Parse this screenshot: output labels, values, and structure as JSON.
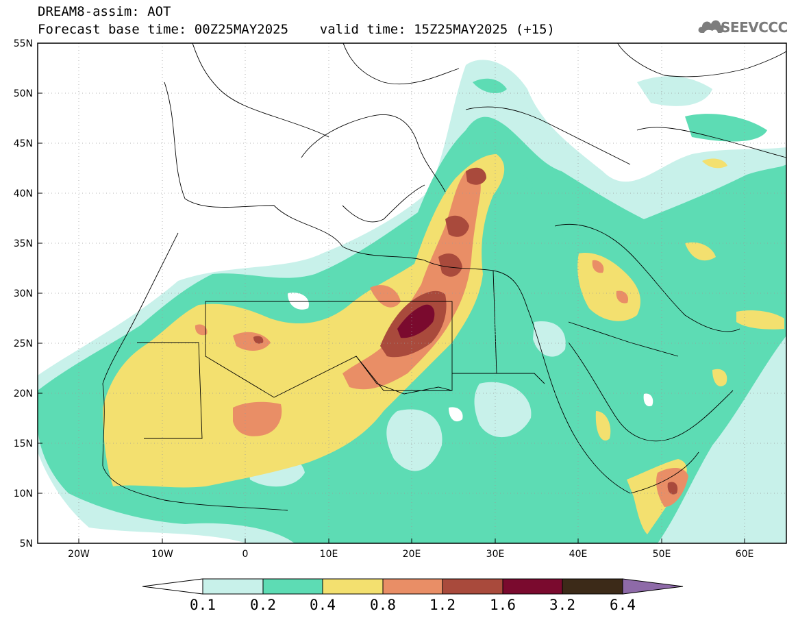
{
  "header": {
    "line1": "DREAM8-assim: AOT",
    "line2": "Forecast base time: 00Z25MAY2025    valid time: 15Z25MAY2025 (+15)"
  },
  "logo": {
    "text": "SEEVCCC",
    "icon": "cloud-icon",
    "color": "#808080"
  },
  "map": {
    "lat_labels": [
      "55N",
      "50N",
      "45N",
      "40N",
      "35N",
      "30N",
      "25N",
      "20N",
      "15N",
      "10N",
      "5N"
    ],
    "lon_labels": [
      "20W",
      "10W",
      "0",
      "10E",
      "20E",
      "30E",
      "40E",
      "50E",
      "60E"
    ],
    "lat_range": [
      5,
      55
    ],
    "lon_range": [
      -25,
      65
    ],
    "grid": "dotted"
  },
  "colorbar": {
    "labels": [
      "0.1",
      "0.2",
      "0.4",
      "0.8",
      "1.2",
      "1.6",
      "3.2",
      "6.4"
    ],
    "colors": [
      "#ffffff",
      "#c8f1ea",
      "#5ddcb4",
      "#f3e06f",
      "#e98e66",
      "#a94a3c",
      "#7a0a2e",
      "#3c2a18",
      "#8e6aa8"
    ]
  }
}
